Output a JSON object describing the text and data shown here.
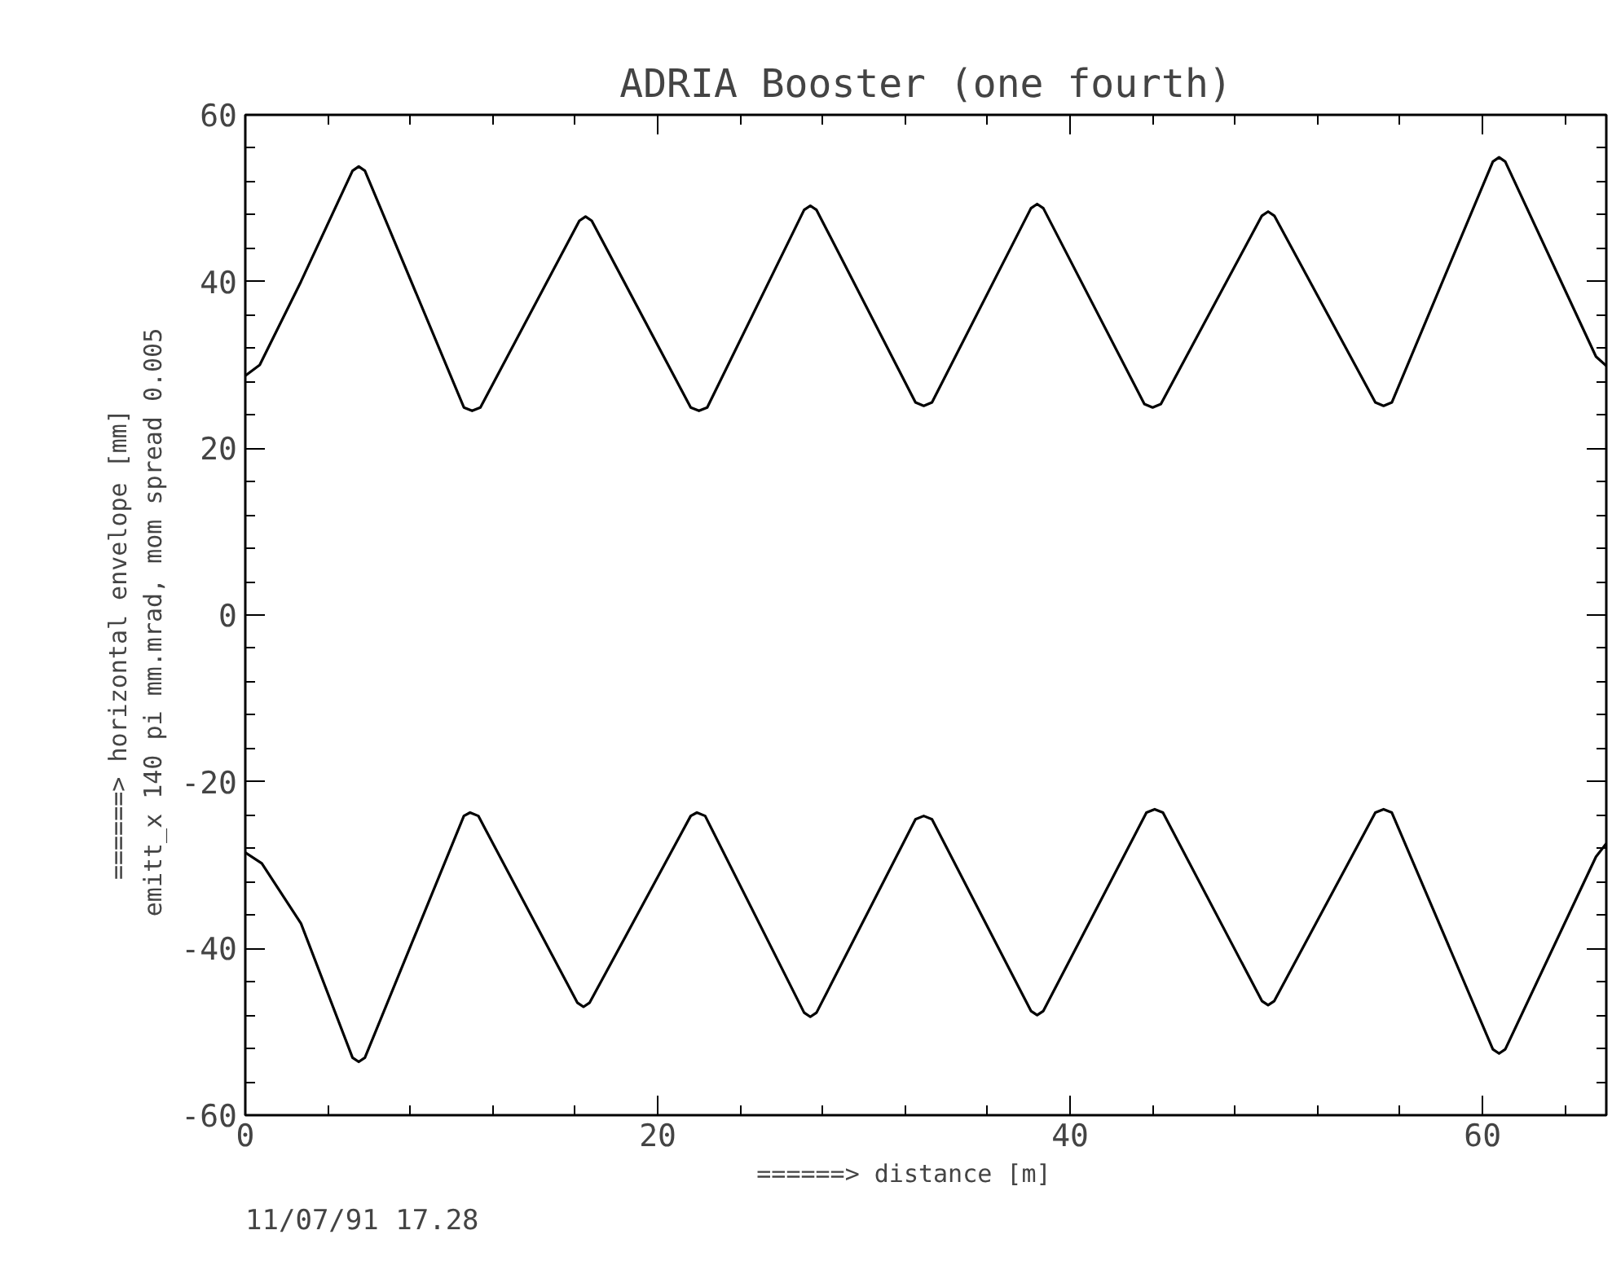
{
  "chart_data": {
    "type": "line",
    "title": "ADRIA Booster (one fourth)",
    "xlabel": "======>   distance  [m]",
    "ylabel": "======>     horizontal envelope [mm]\nemitt_x 140 pi mm.mrad,  mom spread 0.005",
    "annotations": [
      "11/07/91  17.28"
    ],
    "xlim": [
      0,
      66
    ],
    "ylim": [
      -60,
      60
    ],
    "xticks": [
      0,
      {
        "value": 4,
        "label": null
      },
      {
        "value": 8,
        "label": null
      },
      {
        "value": 12,
        "label": null
      },
      {
        "value": 16,
        "label": null
      },
      20,
      {
        "value": 24,
        "label": null
      },
      {
        "value": 28,
        "label": null
      },
      {
        "value": 32,
        "label": null
      },
      {
        "value": 36,
        "label": null
      },
      40,
      {
        "value": 44,
        "label": null
      },
      {
        "value": 48,
        "label": null
      },
      {
        "value": 52,
        "label": null
      },
      {
        "value": 56,
        "label": null
      },
      60,
      {
        "value": 64,
        "label": null
      }
    ],
    "yticks": [
      -60,
      {
        "value": -56,
        "label": null
      },
      {
        "value": -52,
        "label": null
      },
      {
        "value": -48,
        "label": null
      },
      {
        "value": -44,
        "label": null
      },
      -40,
      {
        "value": -36,
        "label": null
      },
      {
        "value": -32,
        "label": null
      },
      {
        "value": -28,
        "label": null
      },
      {
        "value": -24,
        "label": null
      },
      -20,
      {
        "value": -16,
        "label": null
      },
      {
        "value": -12,
        "label": null
      },
      {
        "value": -8,
        "label": null
      },
      {
        "value": -4,
        "label": null
      },
      0,
      {
        "value": 4,
        "label": null
      },
      {
        "value": 8,
        "label": null
      },
      {
        "value": 12,
        "label": null
      },
      {
        "value": 16,
        "label": null
      },
      20,
      {
        "value": 24,
        "label": null
      },
      {
        "value": 28,
        "label": null
      },
      {
        "value": 32,
        "label": null
      },
      {
        "value": 36,
        "label": null
      },
      40,
      {
        "value": 44,
        "label": null
      },
      {
        "value": 48,
        "label": null
      },
      {
        "value": 52,
        "label": null
      },
      {
        "value": 56,
        "label": null
      },
      60
    ],
    "grid": false,
    "marker": "none",
    "line_style": "solid",
    "series": [
      {
        "color": "#000000",
        "x": [
          0,
          0.7,
          2.7,
          5.2,
          5.5,
          5.8,
          10.6,
          11.0,
          11.4,
          16.2,
          16.5,
          16.8,
          21.6,
          22.0,
          22.4,
          27.1,
          27.4,
          27.7,
          32.5,
          32.9,
          33.3,
          38.1,
          38.4,
          38.7,
          43.6,
          44.0,
          44.4,
          49.3,
          49.6,
          49.9,
          54.8,
          55.2,
          55.6,
          60.5,
          60.8,
          61.1,
          65.5,
          66
        ],
        "values": [
          28.7,
          30,
          40,
          53.3,
          53.8,
          53.3,
          24.9,
          24.5,
          24.9,
          47.3,
          47.8,
          47.3,
          24.9,
          24.5,
          24.9,
          48.6,
          49.1,
          48.6,
          25.5,
          25.1,
          25.5,
          48.8,
          49.3,
          48.8,
          25.3,
          24.9,
          25.3,
          47.9,
          48.4,
          47.9,
          25.5,
          25.1,
          25.5,
          54.4,
          54.9,
          54.4,
          31,
          29.9
        ]
      },
      {
        "color": "#000000",
        "x": [
          0,
          0.8,
          2.7,
          5.2,
          5.5,
          5.8,
          10.6,
          10.9,
          11.3,
          16.1,
          16.4,
          16.7,
          21.6,
          21.9,
          22.3,
          27.1,
          27.4,
          27.7,
          32.5,
          32.9,
          33.3,
          38.1,
          38.4,
          38.7,
          43.7,
          44.1,
          44.5,
          49.3,
          49.6,
          49.9,
          54.8,
          55.2,
          55.6,
          60.5,
          60.8,
          61.1,
          65.5,
          66
        ],
        "values": [
          -28.5,
          -29.8,
          -37,
          -53.1,
          -53.6,
          -53.1,
          -24.1,
          -23.7,
          -24.1,
          -46.5,
          -47.0,
          -46.5,
          -24.1,
          -23.7,
          -24.1,
          -47.7,
          -48.2,
          -47.7,
          -24.5,
          -24.1,
          -24.5,
          -47.5,
          -48.0,
          -47.5,
          -23.7,
          -23.3,
          -23.7,
          -46.3,
          -46.8,
          -46.3,
          -23.7,
          -23.3,
          -23.7,
          -52.1,
          -52.6,
          -52.1,
          -29,
          -27.4
        ]
      }
    ]
  }
}
